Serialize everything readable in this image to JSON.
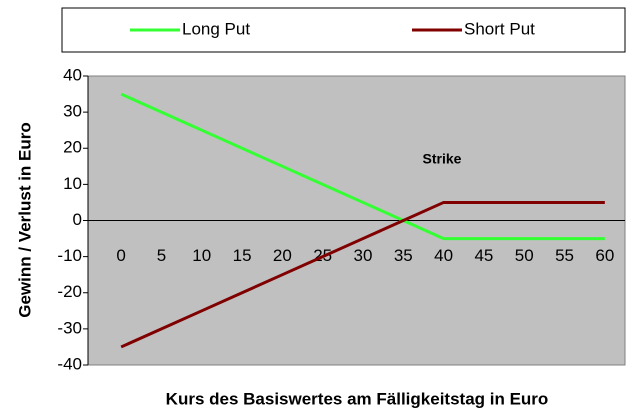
{
  "chart_data": {
    "type": "line",
    "categories": [
      "0",
      "5",
      "10",
      "15",
      "20",
      "25",
      "30",
      "35",
      "40",
      "45",
      "50",
      "55",
      "60"
    ],
    "series": [
      {
        "name": "Long Put",
        "color": "#33ff33",
        "values": [
          35,
          30,
          25,
          20,
          15,
          10,
          5,
          0,
          -5,
          -5,
          -5,
          -5,
          -5
        ]
      },
      {
        "name": "Short Put",
        "color": "#800000",
        "values": [
          -35,
          -30,
          -25,
          -20,
          -15,
          -10,
          -5,
          0,
          5,
          5,
          5,
          5,
          5
        ]
      }
    ],
    "ylim": [
      -40,
      40
    ],
    "yticks": [
      -40,
      -30,
      -20,
      -10,
      0,
      10,
      20,
      30,
      40
    ],
    "ylabel": "Gewinn / Verlust in Euro",
    "xlabel": "Kurs des Basiswertes am Fälligkeitstag in Euro",
    "annotation": "Strike",
    "legend": "top",
    "plot_background": "#c0c0c0"
  }
}
